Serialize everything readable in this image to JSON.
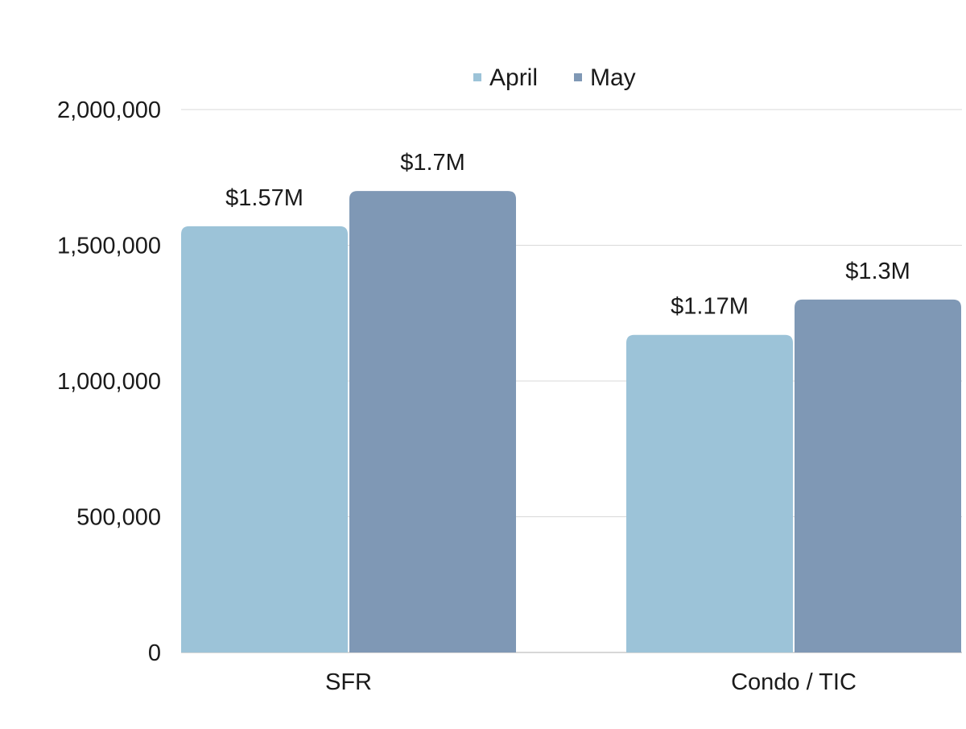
{
  "chart_data": {
    "type": "bar",
    "title": "",
    "xlabel": "",
    "ylabel": "",
    "categories": [
      "SFR",
      "Condo / TIC"
    ],
    "series": [
      {
        "name": "April",
        "color": "#9CC3D8",
        "values": [
          1570000,
          1170000
        ],
        "labels": [
          "$1.57M",
          "$1.17M"
        ]
      },
      {
        "name": "May",
        "color": "#7F98B5",
        "values": [
          1700000,
          1300000
        ],
        "labels": [
          "$1.7M",
          "$1.3M"
        ]
      }
    ],
    "ylim": [
      0,
      2000000
    ],
    "yticks": [
      0,
      500000,
      1000000,
      1500000,
      2000000
    ],
    "ytick_labels": [
      "0",
      "500,000",
      "1,000,000",
      "1,500,000",
      "2,000,000"
    ],
    "grid": true,
    "legend_position": "top-center",
    "colors": {
      "grid": "#D9D9D9",
      "axis": "#BFBFBF",
      "text": "#1a1a1a"
    }
  }
}
